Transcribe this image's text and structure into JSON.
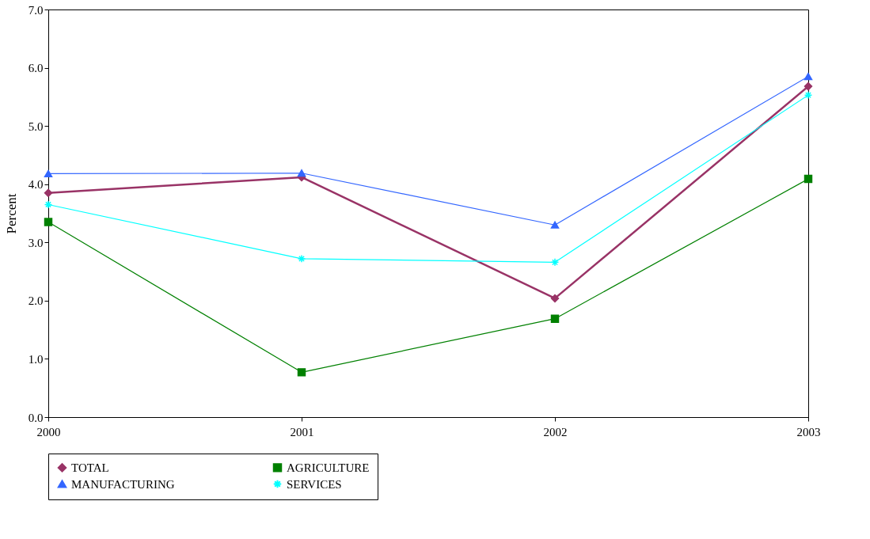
{
  "chart_data": {
    "type": "line",
    "ylabel": "Percent",
    "x": [
      2000,
      2001,
      2002,
      2003
    ],
    "xlim": [
      2000,
      2003
    ],
    "xticks": [
      2000,
      2001,
      2002,
      2003
    ],
    "ylim": [
      0,
      7
    ],
    "yticks": [
      {
        "value": 0,
        "label": "0.0"
      },
      {
        "value": 1,
        "label": "1.0"
      },
      {
        "value": 2,
        "label": "2.0"
      },
      {
        "value": 3,
        "label": "3.0"
      },
      {
        "value": 4,
        "label": "4.0"
      },
      {
        "value": 5,
        "label": "5.0"
      },
      {
        "value": 6,
        "label": "6.0"
      },
      {
        "value": 7,
        "label": "7.0"
      }
    ],
    "grid": false,
    "legend": "bottom",
    "series": [
      {
        "name": "TOTAL",
        "color": "#993366",
        "marker": "diamond",
        "values": [
          3.85,
          4.12,
          2.04,
          5.68
        ]
      },
      {
        "name": "AGRICULTURE",
        "color": "#008000",
        "marker": "square",
        "values": [
          3.35,
          0.77,
          1.69,
          4.09
        ]
      },
      {
        "name": "MANUFACTURING",
        "color": "#3366ff",
        "marker": "triangle",
        "values": [
          4.18,
          4.19,
          3.3,
          5.85
        ]
      },
      {
        "name": "SERVICES",
        "color": "#00ffff",
        "marker": "cross",
        "values": [
          3.65,
          2.72,
          2.66,
          5.53
        ]
      }
    ]
  }
}
